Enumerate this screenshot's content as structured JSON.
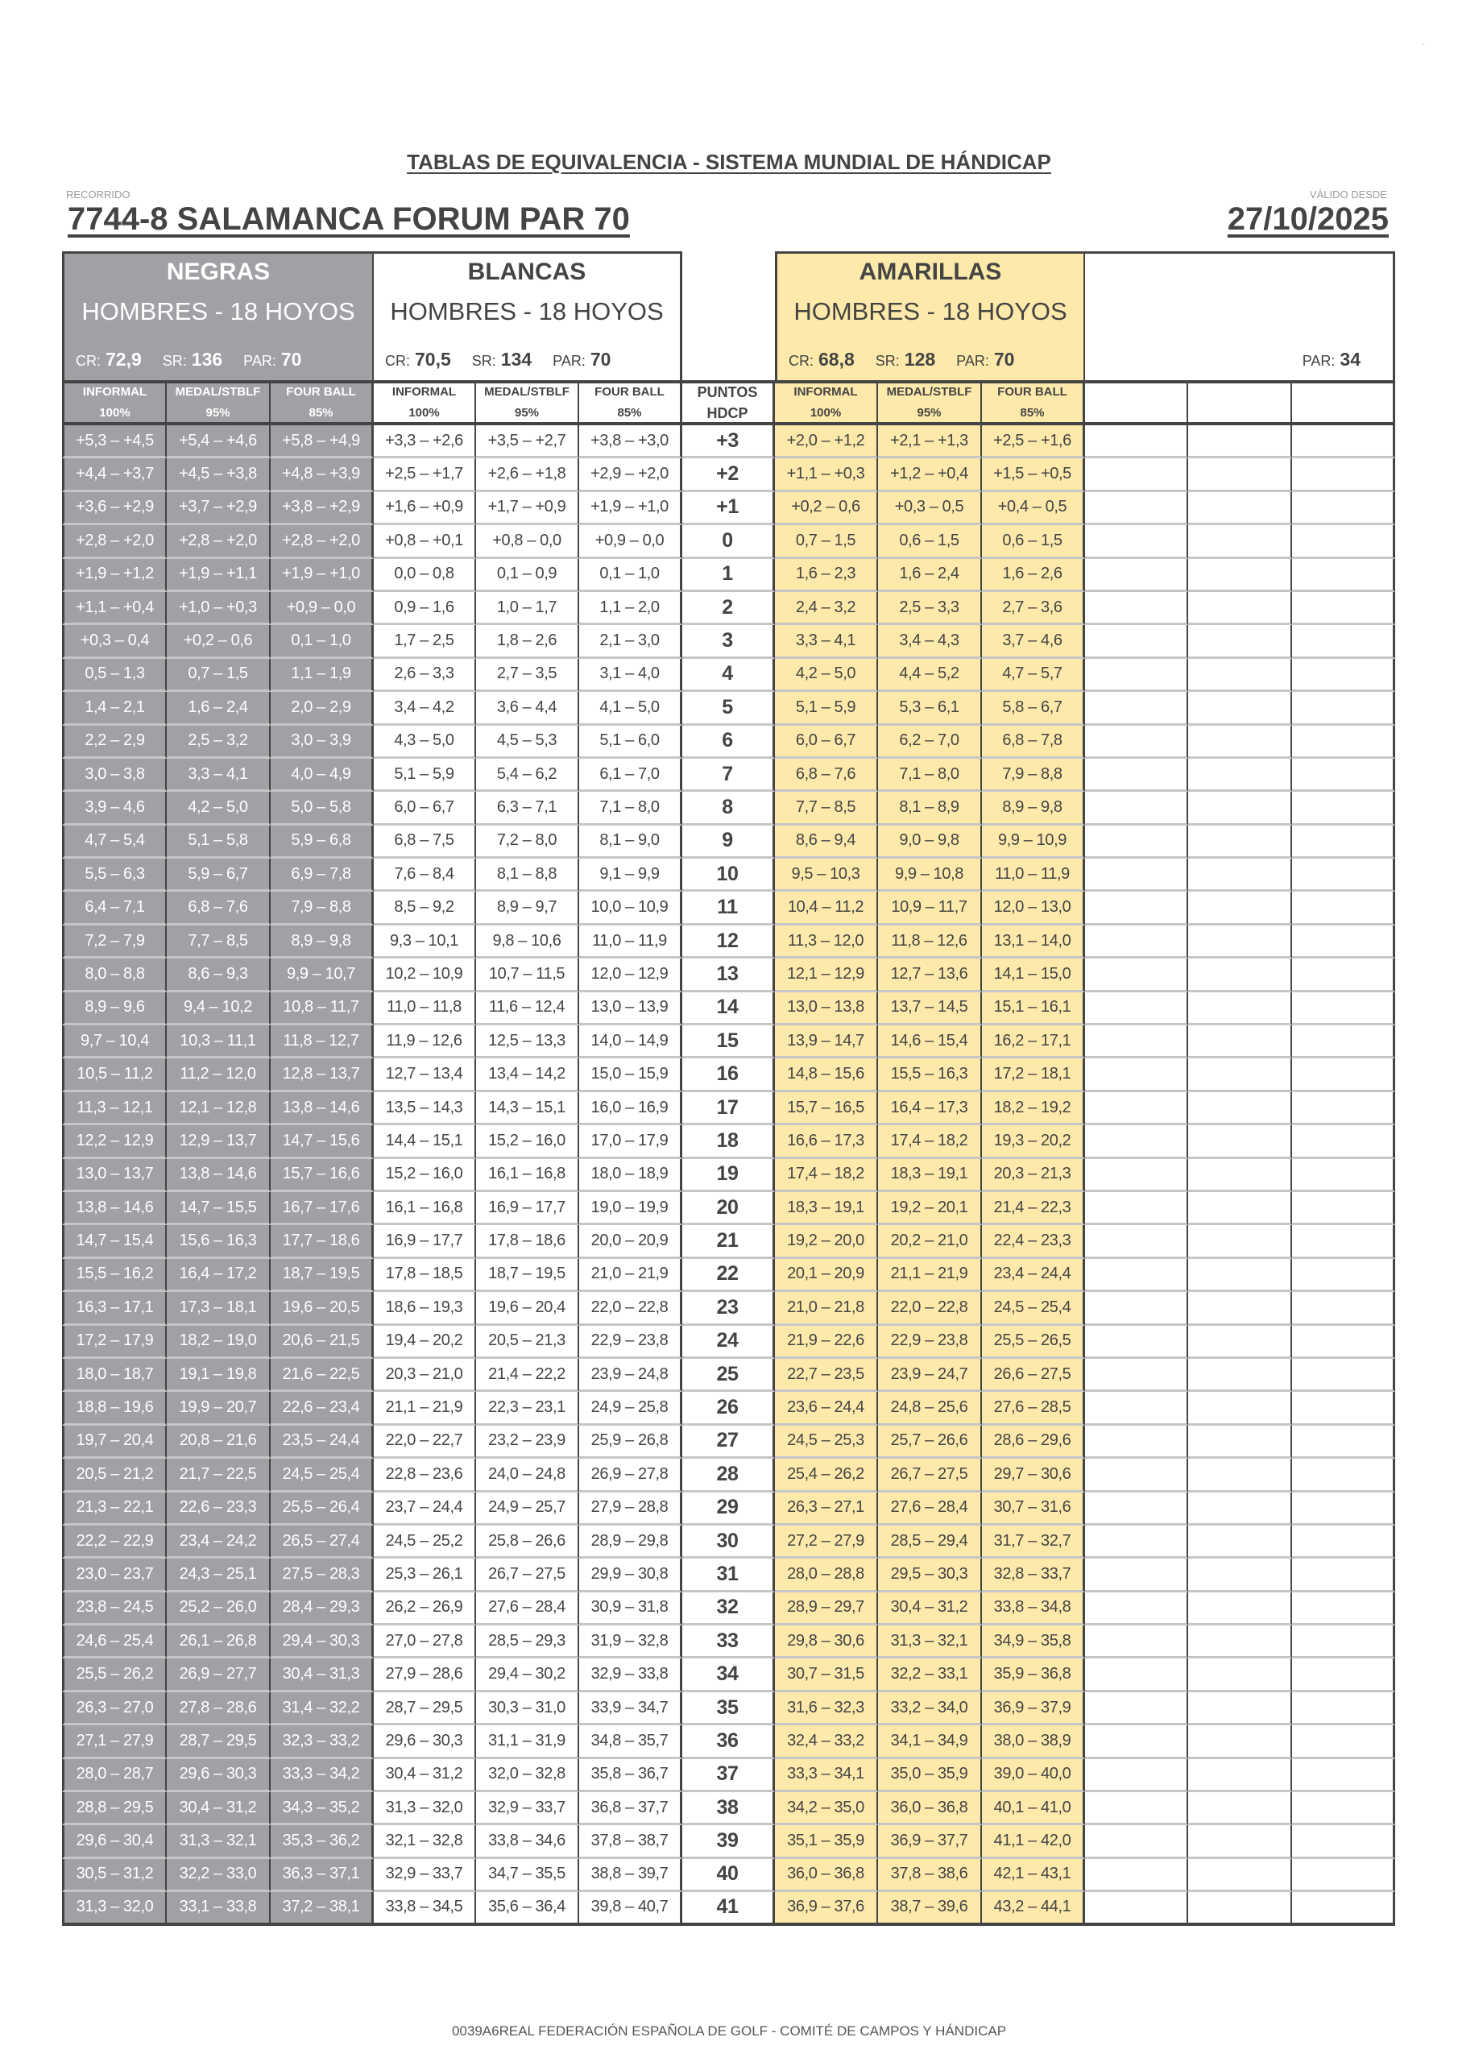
{
  "header": {
    "title": "TABLAS DE EQUIVALENCIA - SISTEMA MUNDIAL DE HÁNDICAP",
    "recorrido_label": "RECORRIDO",
    "course": "7744-8  SALAMANCA FORUM PAR 70",
    "valido_label": "VÁLIDO DESDE",
    "date": "27/10/2025"
  },
  "tees": [
    {
      "name": "NEGRAS",
      "subtitle": "HOMBRES - 18 HOYOS",
      "cr_label": "CR:",
      "cr": "72,9",
      "sr_label": "SR:",
      "sr": "136",
      "par_label": "PAR:",
      "par": "70",
      "color": "#a0a1a5"
    },
    {
      "name": "BLANCAS",
      "subtitle": "HOMBRES - 18 HOYOS",
      "cr_label": "CR:",
      "cr": "70,5",
      "sr_label": "SR:",
      "sr": "134",
      "par_label": "PAR:",
      "par": "70",
      "color": "#ffffff"
    },
    {
      "name": "AMARILLAS",
      "subtitle": "HOMBRES - 18 HOYOS",
      "cr_label": "CR:",
      "cr": "68,8",
      "sr_label": "SR:",
      "sr": "128",
      "par_label": "PAR:",
      "par": "70",
      "color": "#fde9a9"
    },
    {
      "par_label": "PAR:",
      "par": "34"
    }
  ],
  "column_headers": {
    "modes": [
      [
        "INFORMAL",
        "100%"
      ],
      [
        "MEDAL/STBLF",
        "95%"
      ],
      [
        "FOUR BALL",
        "85%"
      ]
    ],
    "puntos": [
      "PUNTOS",
      "HDCP"
    ]
  },
  "rows": [
    [
      "+5,3 – +4,5",
      "+5,4 – +4,6",
      "+5,8 – +4,9",
      "+3,3 – +2,6",
      "+3,5 – +2,7",
      "+3,8 – +3,0",
      "+3",
      "+2,0 – +1,2",
      "+2,1 – +1,3",
      "+2,5 – +1,6"
    ],
    [
      "+4,4 – +3,7",
      "+4,5 – +3,8",
      "+4,8 – +3,9",
      "+2,5 – +1,7",
      "+2,6 – +1,8",
      "+2,9 – +2,0",
      "+2",
      "+1,1 – +0,3",
      "+1,2 – +0,4",
      "+1,5 – +0,5"
    ],
    [
      "+3,6 – +2,9",
      "+3,7 – +2,9",
      "+3,8 – +2,9",
      "+1,6 – +0,9",
      "+1,7 – +0,9",
      "+1,9 – +1,0",
      "+1",
      "+0,2 – 0,6",
      "+0,3 – 0,5",
      "+0,4 – 0,5"
    ],
    [
      "+2,8 – +2,0",
      "+2,8 – +2,0",
      "+2,8 – +2,0",
      "+0,8 – +0,1",
      "+0,8 – 0,0",
      "+0,9 – 0,0",
      "0",
      "0,7 – 1,5",
      "0,6 – 1,5",
      "0,6 – 1,5"
    ],
    [
      "+1,9 – +1,2",
      "+1,9 – +1,1",
      "+1,9 – +1,0",
      "0,0 – 0,8",
      "0,1 – 0,9",
      "0,1 – 1,0",
      "1",
      "1,6 – 2,3",
      "1,6 – 2,4",
      "1,6 – 2,6"
    ],
    [
      "+1,1 – +0,4",
      "+1,0 – +0,3",
      "+0,9 – 0,0",
      "0,9 – 1,6",
      "1,0 – 1,7",
      "1,1 – 2,0",
      "2",
      "2,4 – 3,2",
      "2,5 – 3,3",
      "2,7 – 3,6"
    ],
    [
      "+0,3 – 0,4",
      "+0,2 – 0,6",
      "0,1 – 1,0",
      "1,7 – 2,5",
      "1,8 – 2,6",
      "2,1 – 3,0",
      "3",
      "3,3 – 4,1",
      "3,4 – 4,3",
      "3,7 – 4,6"
    ],
    [
      "0,5 – 1,3",
      "0,7 – 1,5",
      "1,1 – 1,9",
      "2,6 – 3,3",
      "2,7 – 3,5",
      "3,1 – 4,0",
      "4",
      "4,2 – 5,0",
      "4,4 – 5,2",
      "4,7 – 5,7"
    ],
    [
      "1,4 – 2,1",
      "1,6 – 2,4",
      "2,0 – 2,9",
      "3,4 – 4,2",
      "3,6 – 4,4",
      "4,1 – 5,0",
      "5",
      "5,1 – 5,9",
      "5,3 – 6,1",
      "5,8 – 6,7"
    ],
    [
      "2,2 – 2,9",
      "2,5 – 3,2",
      "3,0 – 3,9",
      "4,3 – 5,0",
      "4,5 – 5,3",
      "5,1 – 6,0",
      "6",
      "6,0 – 6,7",
      "6,2 – 7,0",
      "6,8 – 7,8"
    ],
    [
      "3,0 – 3,8",
      "3,3 – 4,1",
      "4,0 – 4,9",
      "5,1 – 5,9",
      "5,4 – 6,2",
      "6,1 – 7,0",
      "7",
      "6,8 – 7,6",
      "7,1 – 8,0",
      "7,9 – 8,8"
    ],
    [
      "3,9 – 4,6",
      "4,2 – 5,0",
      "5,0 – 5,8",
      "6,0 – 6,7",
      "6,3 – 7,1",
      "7,1 – 8,0",
      "8",
      "7,7 – 8,5",
      "8,1 – 8,9",
      "8,9 – 9,8"
    ],
    [
      "4,7 – 5,4",
      "5,1 – 5,8",
      "5,9 – 6,8",
      "6,8 – 7,5",
      "7,2 – 8,0",
      "8,1 – 9,0",
      "9",
      "8,6 – 9,4",
      "9,0 – 9,8",
      "9,9 – 10,9"
    ],
    [
      "5,5 – 6,3",
      "5,9 – 6,7",
      "6,9 – 7,8",
      "7,6 – 8,4",
      "8,1 – 8,8",
      "9,1 – 9,9",
      "10",
      "9,5 – 10,3",
      "9,9 – 10,8",
      "11,0 – 11,9"
    ],
    [
      "6,4 – 7,1",
      "6,8 – 7,6",
      "7,9 – 8,8",
      "8,5 – 9,2",
      "8,9 – 9,7",
      "10,0 – 10,9",
      "11",
      "10,4 – 11,2",
      "10,9 – 11,7",
      "12,0 – 13,0"
    ],
    [
      "7,2 – 7,9",
      "7,7 – 8,5",
      "8,9 – 9,8",
      "9,3 – 10,1",
      "9,8 – 10,6",
      "11,0 – 11,9",
      "12",
      "11,3 – 12,0",
      "11,8 – 12,6",
      "13,1 – 14,0"
    ],
    [
      "8,0 – 8,8",
      "8,6 – 9,3",
      "9,9 – 10,7",
      "10,2 – 10,9",
      "10,7 – 11,5",
      "12,0 – 12,9",
      "13",
      "12,1 – 12,9",
      "12,7 – 13,6",
      "14,1 – 15,0"
    ],
    [
      "8,9 – 9,6",
      "9,4 – 10,2",
      "10,8 – 11,7",
      "11,0 – 11,8",
      "11,6 – 12,4",
      "13,0 – 13,9",
      "14",
      "13,0 – 13,8",
      "13,7 – 14,5",
      "15,1 – 16,1"
    ],
    [
      "9,7 – 10,4",
      "10,3 – 11,1",
      "11,8 – 12,7",
      "11,9 – 12,6",
      "12,5 – 13,3",
      "14,0 – 14,9",
      "15",
      "13,9 – 14,7",
      "14,6 – 15,4",
      "16,2 – 17,1"
    ],
    [
      "10,5 – 11,2",
      "11,2 – 12,0",
      "12,8 – 13,7",
      "12,7 – 13,4",
      "13,4 – 14,2",
      "15,0 – 15,9",
      "16",
      "14,8 – 15,6",
      "15,5 – 16,3",
      "17,2 – 18,1"
    ],
    [
      "11,3 – 12,1",
      "12,1 – 12,8",
      "13,8 – 14,6",
      "13,5 – 14,3",
      "14,3 – 15,1",
      "16,0 – 16,9",
      "17",
      "15,7 – 16,5",
      "16,4 – 17,3",
      "18,2 – 19,2"
    ],
    [
      "12,2 – 12,9",
      "12,9 – 13,7",
      "14,7 – 15,6",
      "14,4 – 15,1",
      "15,2 – 16,0",
      "17,0 – 17,9",
      "18",
      "16,6 – 17,3",
      "17,4 – 18,2",
      "19,3 – 20,2"
    ],
    [
      "13,0 – 13,7",
      "13,8 – 14,6",
      "15,7 – 16,6",
      "15,2 – 16,0",
      "16,1 – 16,8",
      "18,0 – 18,9",
      "19",
      "17,4 – 18,2",
      "18,3 – 19,1",
      "20,3 – 21,3"
    ],
    [
      "13,8 – 14,6",
      "14,7 – 15,5",
      "16,7 – 17,6",
      "16,1 – 16,8",
      "16,9 – 17,7",
      "19,0 – 19,9",
      "20",
      "18,3 – 19,1",
      "19,2 – 20,1",
      "21,4 – 22,3"
    ],
    [
      "14,7 – 15,4",
      "15,6 – 16,3",
      "17,7 – 18,6",
      "16,9 – 17,7",
      "17,8 – 18,6",
      "20,0 – 20,9",
      "21",
      "19,2 – 20,0",
      "20,2 – 21,0",
      "22,4 – 23,3"
    ],
    [
      "15,5 – 16,2",
      "16,4 – 17,2",
      "18,7 – 19,5",
      "17,8 – 18,5",
      "18,7 – 19,5",
      "21,0 – 21,9",
      "22",
      "20,1 – 20,9",
      "21,1 – 21,9",
      "23,4 – 24,4"
    ],
    [
      "16,3 – 17,1",
      "17,3 – 18,1",
      "19,6 – 20,5",
      "18,6 – 19,3",
      "19,6 – 20,4",
      "22,0 – 22,8",
      "23",
      "21,0 – 21,8",
      "22,0 – 22,8",
      "24,5 – 25,4"
    ],
    [
      "17,2 – 17,9",
      "18,2 – 19,0",
      "20,6 – 21,5",
      "19,4 – 20,2",
      "20,5 – 21,3",
      "22,9 – 23,8",
      "24",
      "21,9 – 22,6",
      "22,9 – 23,8",
      "25,5 – 26,5"
    ],
    [
      "18,0 – 18,7",
      "19,1 – 19,8",
      "21,6 – 22,5",
      "20,3 – 21,0",
      "21,4 – 22,2",
      "23,9 – 24,8",
      "25",
      "22,7 – 23,5",
      "23,9 – 24,7",
      "26,6 – 27,5"
    ],
    [
      "18,8 – 19,6",
      "19,9 – 20,7",
      "22,6 – 23,4",
      "21,1 – 21,9",
      "22,3 – 23,1",
      "24,9 – 25,8",
      "26",
      "23,6 – 24,4",
      "24,8 – 25,6",
      "27,6 – 28,5"
    ],
    [
      "19,7 – 20,4",
      "20,8 – 21,6",
      "23,5 – 24,4",
      "22,0 – 22,7",
      "23,2 – 23,9",
      "25,9 – 26,8",
      "27",
      "24,5 – 25,3",
      "25,7 – 26,6",
      "28,6 – 29,6"
    ],
    [
      "20,5 – 21,2",
      "21,7 – 22,5",
      "24,5 – 25,4",
      "22,8 – 23,6",
      "24,0 – 24,8",
      "26,9 – 27,8",
      "28",
      "25,4 – 26,2",
      "26,7 – 27,5",
      "29,7 – 30,6"
    ],
    [
      "21,3 – 22,1",
      "22,6 – 23,3",
      "25,5 – 26,4",
      "23,7 – 24,4",
      "24,9 – 25,7",
      "27,9 – 28,8",
      "29",
      "26,3 – 27,1",
      "27,6 – 28,4",
      "30,7 – 31,6"
    ],
    [
      "22,2 – 22,9",
      "23,4 – 24,2",
      "26,5 – 27,4",
      "24,5 – 25,2",
      "25,8 – 26,6",
      "28,9 – 29,8",
      "30",
      "27,2 – 27,9",
      "28,5 – 29,4",
      "31,7 – 32,7"
    ],
    [
      "23,0 – 23,7",
      "24,3 – 25,1",
      "27,5 – 28,3",
      "25,3 – 26,1",
      "26,7 – 27,5",
      "29,9 – 30,8",
      "31",
      "28,0 – 28,8",
      "29,5 – 30,3",
      "32,8 – 33,7"
    ],
    [
      "23,8 – 24,5",
      "25,2 – 26,0",
      "28,4 – 29,3",
      "26,2 – 26,9",
      "27,6 – 28,4",
      "30,9 – 31,8",
      "32",
      "28,9 – 29,7",
      "30,4 – 31,2",
      "33,8 – 34,8"
    ],
    [
      "24,6 – 25,4",
      "26,1 – 26,8",
      "29,4 – 30,3",
      "27,0 – 27,8",
      "28,5 – 29,3",
      "31,9 – 32,8",
      "33",
      "29,8 – 30,6",
      "31,3 – 32,1",
      "34,9 – 35,8"
    ],
    [
      "25,5 – 26,2",
      "26,9 – 27,7",
      "30,4 – 31,3",
      "27,9 – 28,6",
      "29,4 – 30,2",
      "32,9 – 33,8",
      "34",
      "30,7 – 31,5",
      "32,2 – 33,1",
      "35,9 – 36,8"
    ],
    [
      "26,3 – 27,0",
      "27,8 – 28,6",
      "31,4 – 32,2",
      "28,7 – 29,5",
      "30,3 – 31,0",
      "33,9 – 34,7",
      "35",
      "31,6 – 32,3",
      "33,2 – 34,0",
      "36,9 – 37,9"
    ],
    [
      "27,1 – 27,9",
      "28,7 – 29,5",
      "32,3 – 33,2",
      "29,6 – 30,3",
      "31,1 – 31,9",
      "34,8 – 35,7",
      "36",
      "32,4 – 33,2",
      "34,1 – 34,9",
      "38,0 – 38,9"
    ],
    [
      "28,0 – 28,7",
      "29,6 – 30,3",
      "33,3 – 34,2",
      "30,4 – 31,2",
      "32,0 – 32,8",
      "35,8 – 36,7",
      "37",
      "33,3 – 34,1",
      "35,0 – 35,9",
      "39,0 – 40,0"
    ],
    [
      "28,8 – 29,5",
      "30,4 – 31,2",
      "34,3 – 35,2",
      "31,3 – 32,0",
      "32,9 – 33,7",
      "36,8 – 37,7",
      "38",
      "34,2 – 35,0",
      "36,0 – 36,8",
      "40,1 – 41,0"
    ],
    [
      "29,6 – 30,4",
      "31,3 – 32,1",
      "35,3 – 36,2",
      "32,1 – 32,8",
      "33,8 – 34,6",
      "37,8 – 38,7",
      "39",
      "35,1 – 35,9",
      "36,9 – 37,7",
      "41,1 – 42,0"
    ],
    [
      "30,5 – 31,2",
      "32,2 – 33,0",
      "36,3 – 37,1",
      "32,9 – 33,7",
      "34,7 – 35,5",
      "38,8 – 39,7",
      "40",
      "36,0 – 36,8",
      "37,8 – 38,6",
      "42,1 – 43,1"
    ],
    [
      "31,3 – 32,0",
      "33,1 – 33,8",
      "37,2 – 38,1",
      "33,8 – 34,5",
      "35,6 – 36,4",
      "39,8 – 40,7",
      "41",
      "36,9 – 37,6",
      "38,7 – 39,6",
      "43,2 – 44,1"
    ]
  ],
  "footer": "0039A6REAL FEDERACIÓN ESPAÑOLA DE GOLF - COMITÉ DE CAMPOS Y HÁNDICAP"
}
